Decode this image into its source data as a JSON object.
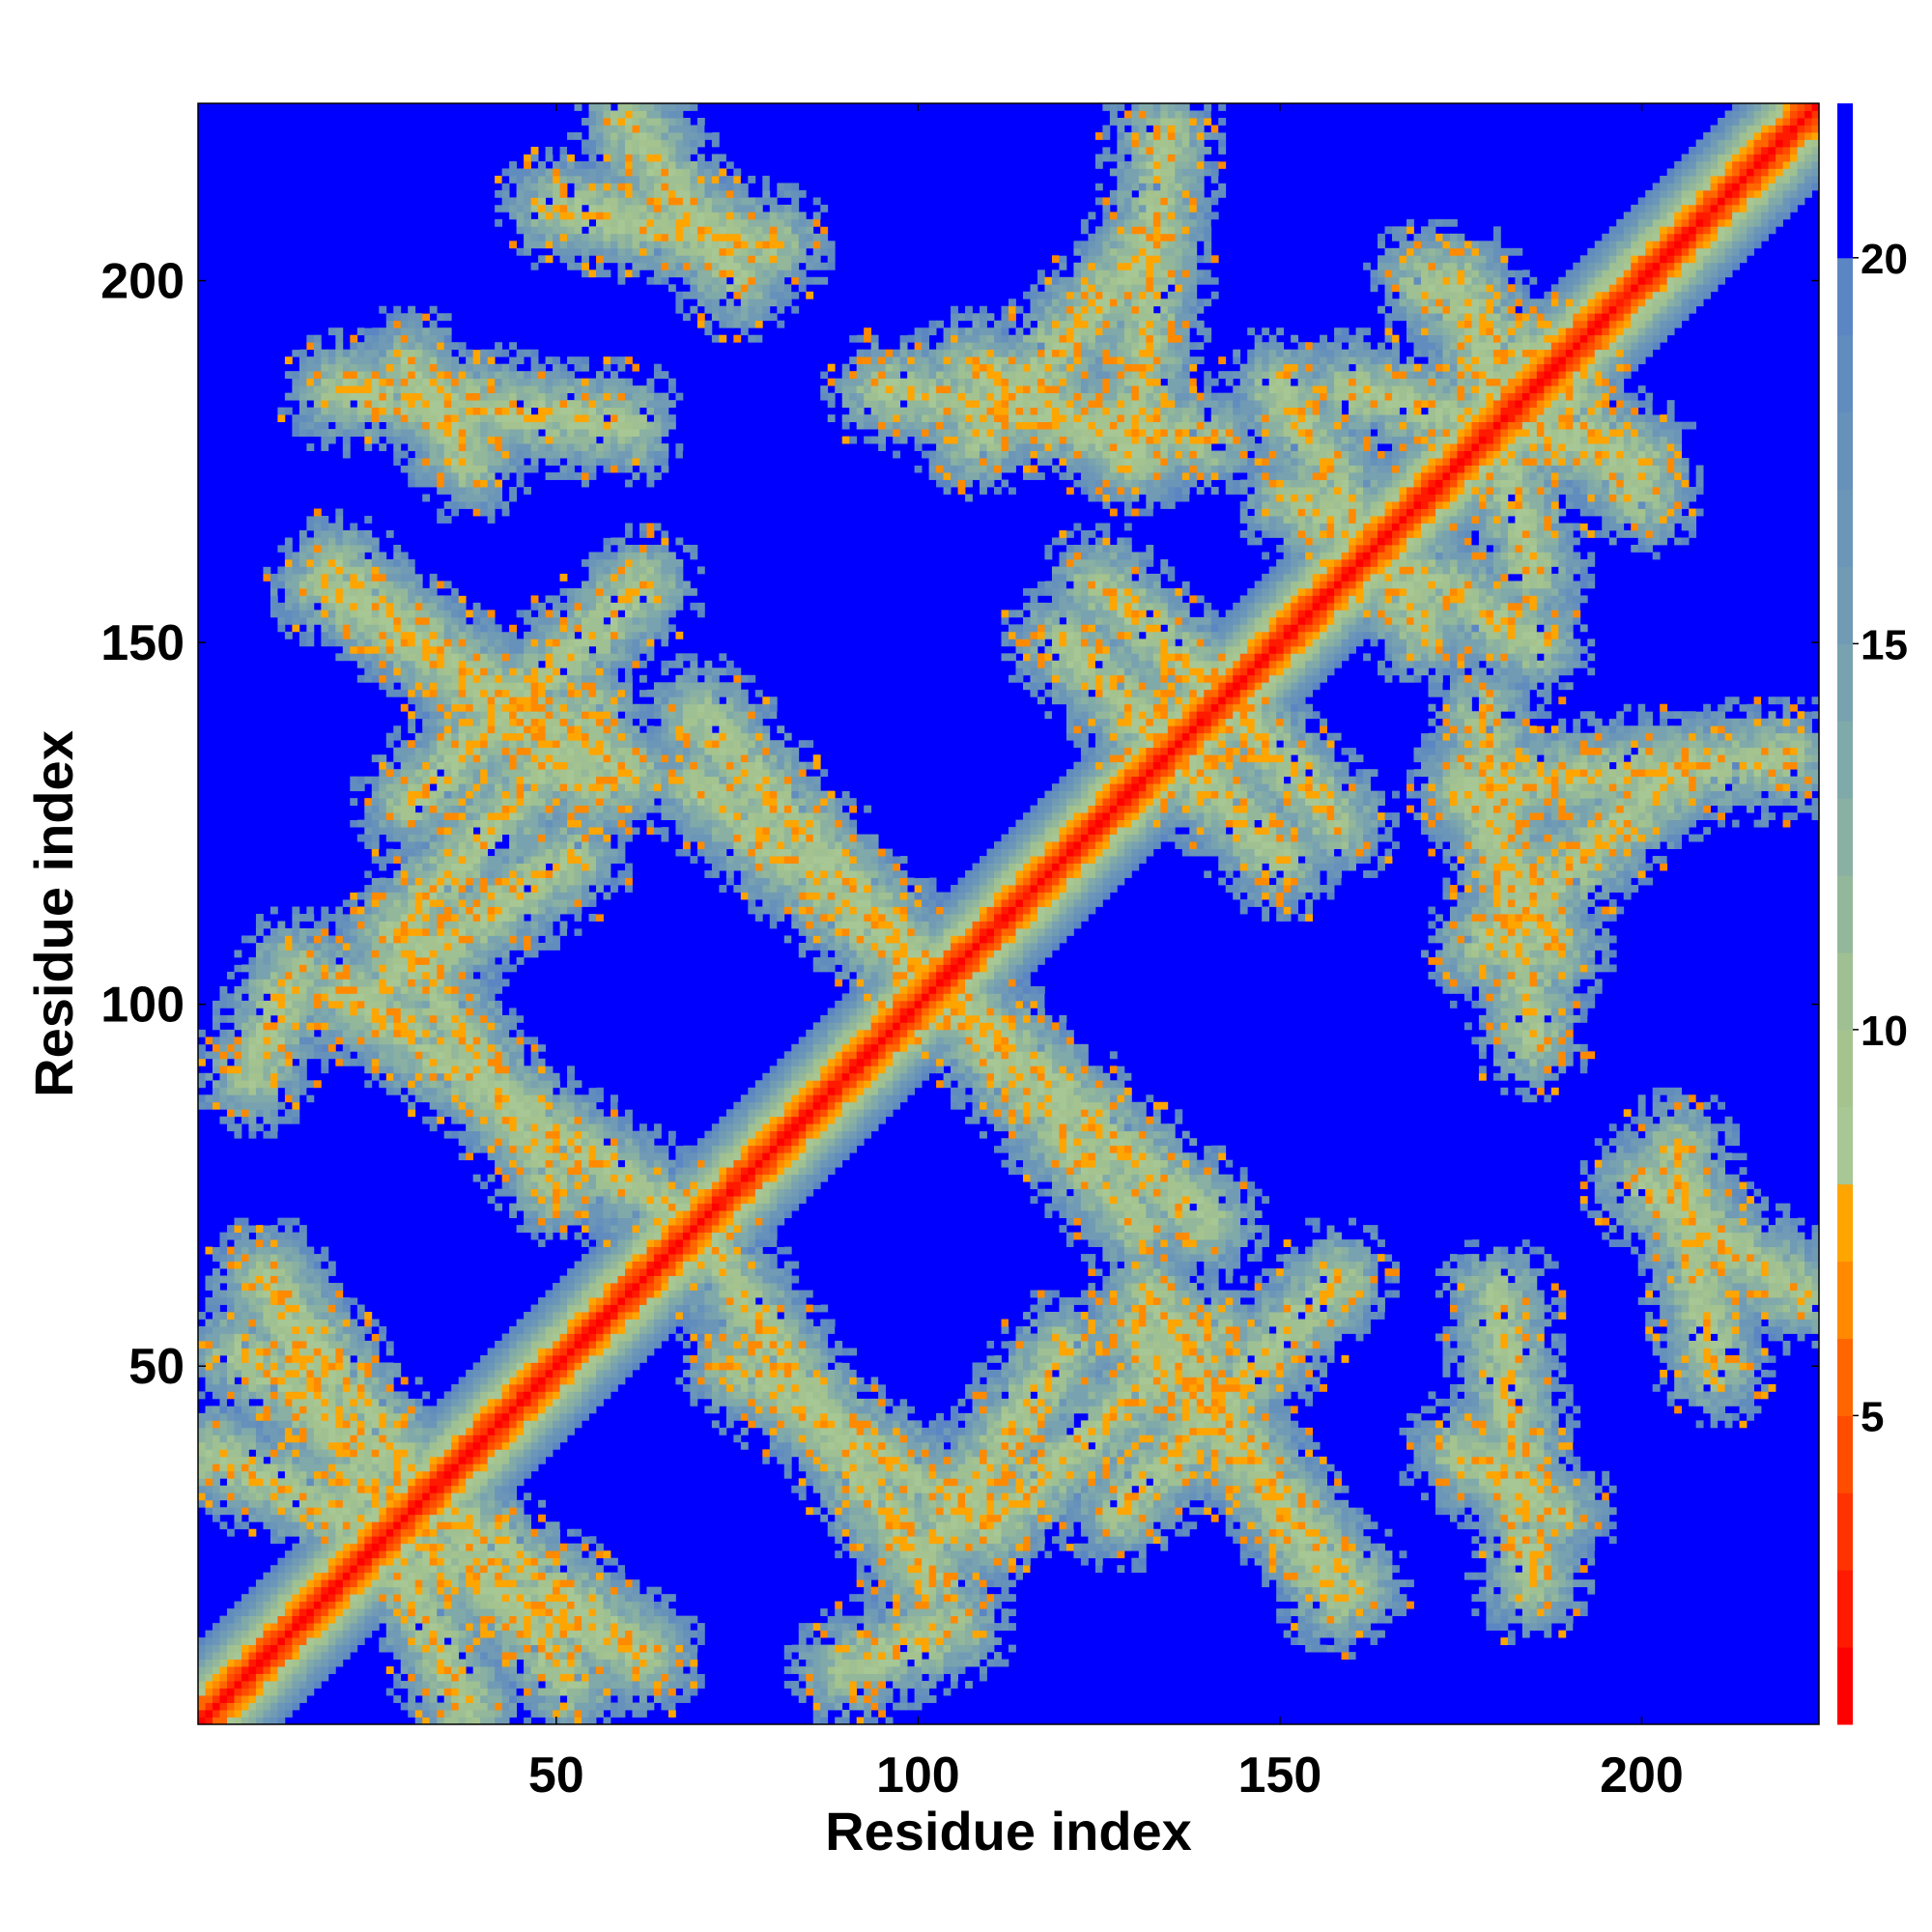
{
  "chart_data": {
    "type": "heatmap",
    "title": "",
    "xlabel": "Residue index",
    "ylabel": "Residue index",
    "xlim": [
      1,
      224
    ],
    "ylim": [
      1,
      224
    ],
    "x_ticks": [
      50,
      100,
      150,
      200
    ],
    "y_ticks": [
      50,
      100,
      150,
      200
    ],
    "colorbar": {
      "range": [
        1,
        22
      ],
      "ticks": [
        5,
        10,
        15,
        20
      ],
      "levels": [
        {
          "max": 2,
          "color": "#ff0000"
        },
        {
          "max": 3,
          "color": "#ff1a00"
        },
        {
          "max": 4,
          "color": "#ff3300"
        },
        {
          "max": 5,
          "color": "#ff4d00"
        },
        {
          "max": 6,
          "color": "#ff6600"
        },
        {
          "max": 7,
          "color": "#ff8a00"
        },
        {
          "max": 8,
          "color": "#ffa500"
        },
        {
          "max": 9,
          "color": "#a7c795"
        },
        {
          "max": 10,
          "color": "#a5c38f"
        },
        {
          "max": 11,
          "color": "#9ec093"
        },
        {
          "max": 12,
          "color": "#93b79a"
        },
        {
          "max": 13,
          "color": "#89b0a2"
        },
        {
          "max": 14,
          "color": "#80a9aa"
        },
        {
          "max": 15,
          "color": "#78a2b0"
        },
        {
          "max": 16,
          "color": "#719bb5"
        },
        {
          "max": 17,
          "color": "#6b96b8"
        },
        {
          "max": 18,
          "color": "#6691bb"
        },
        {
          "max": 19,
          "color": "#618cbe"
        },
        {
          "max": 20,
          "color": "#5b86c3"
        },
        {
          "max": 22,
          "color": "#0000ff"
        }
      ]
    },
    "background_value": 22,
    "diagonal": {
      "core_value": 1.5,
      "width_residues": 11
    },
    "contact_bands": [
      {
        "from": [
          2,
          38
        ],
        "to": [
          62,
          10
        ]
      },
      {
        "from": [
          6,
          52
        ],
        "to": [
          62,
          10
        ]
      },
      {
        "from": [
          20,
          102
        ],
        "to": [
          68,
          70
        ]
      },
      {
        "from": [
          22,
          100
        ],
        "to": [
          52,
          120
        ]
      },
      {
        "from": [
          30,
          128
        ],
        "to": [
          62,
          158
        ]
      },
      {
        "from": [
          18,
          158
        ],
        "to": [
          60,
          132
        ]
      },
      {
        "from": [
          20,
          185
        ],
        "to": [
          60,
          180
        ]
      },
      {
        "from": [
          50,
          210
        ],
        "to": [
          80,
          205
        ]
      },
      {
        "from": [
          70,
          140
        ],
        "to": [
          105,
          100
        ]
      },
      {
        "from": [
          105,
          100
        ],
        "to": [
          130,
          70
        ]
      },
      {
        "from": [
          75,
          50
        ],
        "to": [
          110,
          28
        ]
      },
      {
        "from": [
          110,
          28
        ],
        "to": [
          140,
          55
        ]
      },
      {
        "from": [
          130,
          55
        ],
        "to": [
          160,
          20
        ]
      },
      {
        "from": [
          90,
          8
        ],
        "to": [
          105,
          14
        ]
      },
      {
        "from": [
          108,
          178
        ],
        "to": [
          132,
          205
        ]
      },
      {
        "from": [
          95,
          185
        ],
        "to": [
          140,
          178
        ]
      },
      {
        "from": [
          120,
          150
        ],
        "to": [
          140,
          130
        ]
      },
      {
        "from": [
          140,
          145
        ],
        "to": [
          158,
          125
        ]
      },
      {
        "from": [
          152,
          170
        ],
        "to": [
          185,
          150
        ]
      },
      {
        "from": [
          160,
          185
        ],
        "to": [
          200,
          175
        ]
      },
      {
        "from": [
          170,
          200
        ],
        "to": [
          190,
          185
        ]
      },
      {
        "from": [
          176,
          130
        ],
        "to": [
          220,
          134
        ]
      },
      {
        "from": [
          176,
          130
        ],
        "to": [
          188,
          108
        ]
      },
      {
        "from": [
          175,
          38
        ],
        "to": [
          188,
          30
        ]
      },
      {
        "from": [
          200,
          75
        ],
        "to": [
          222,
          60
        ]
      }
    ]
  }
}
